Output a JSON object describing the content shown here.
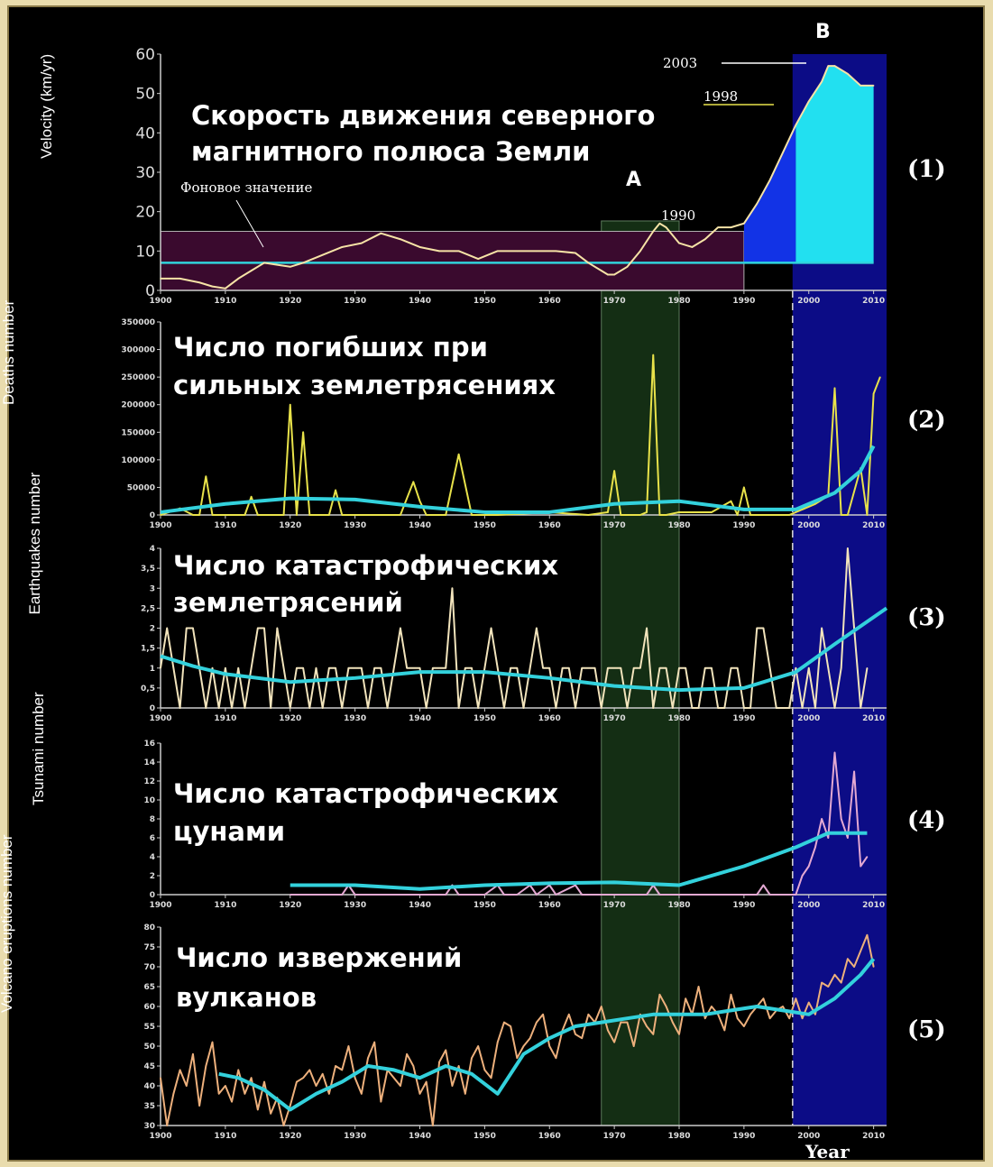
{
  "chart_data": [
    {
      "type": "line",
      "panel_number": "(1)",
      "title_lines": [
        "Скорость движения северного",
        "магнитного полюса Земли"
      ],
      "ylabel": "Velocity (km/yr)",
      "xlim": [
        1900,
        2012
      ],
      "ylim": [
        0,
        60
      ],
      "yticks": [
        "0",
        "10",
        "20",
        "30",
        "40",
        "50",
        "60"
      ],
      "xticks": [
        "1900",
        "1910",
        "1920",
        "1930",
        "1940",
        "1950",
        "1960",
        "1970",
        "1980",
        "1990",
        "2000",
        "2010"
      ],
      "background_label": "Фоновое значение",
      "background_value": 7,
      "background_band": [
        0,
        15
      ],
      "label_A": "A",
      "label_B": "B",
      "annotations": [
        "1990",
        "1998",
        "2003"
      ],
      "series": [
        {
          "color": "#f6e3a6",
          "x": [
            1900,
            1903,
            1906,
            1908,
            1910,
            1912,
            1914,
            1916,
            1918,
            1920,
            1922,
            1925,
            1928,
            1931,
            1934,
            1937,
            1940,
            1943,
            1946,
            1949,
            1952,
            1955,
            1958,
            1961,
            1964,
            1966,
            1968,
            1969,
            1970,
            1972,
            1974,
            1976,
            1977,
            1978,
            1980,
            1982,
            1984,
            1986,
            1988,
            1990,
            1992,
            1994,
            1996,
            1998,
            2000,
            2002,
            2003,
            2004,
            2006,
            2008,
            2010
          ],
          "y": [
            3,
            3,
            2,
            1,
            0.5,
            3,
            5,
            7,
            6.5,
            6,
            7,
            9,
            11,
            12,
            14.5,
            13,
            11,
            10,
            10,
            8,
            10,
            10,
            10,
            10,
            9.5,
            7,
            5,
            4,
            4,
            6,
            10,
            15,
            17,
            16,
            12,
            11,
            13,
            16,
            16,
            17,
            22,
            28,
            35,
            42,
            48,
            53,
            57,
            57,
            55,
            52,
            52
          ]
        }
      ]
    },
    {
      "type": "line",
      "panel_number": "(2)",
      "title_lines": [
        "Число погибших при",
        "сильных землетрясениях"
      ],
      "ylabel": "Deaths number",
      "xlim": [
        1900,
        2012
      ],
      "ylim": [
        0,
        350000
      ],
      "yticks": [
        "0",
        "50000",
        "100000",
        "150000",
        "200000",
        "250000",
        "300000",
        "350000"
      ],
      "xticks": [
        "1900",
        "1910",
        "1920",
        "1930",
        "1940",
        "1950",
        "1960",
        "1970",
        "1980",
        "1990",
        "2000",
        "2010"
      ],
      "series": [
        {
          "color": "#e8e24a",
          "x": [
            1900,
            1903,
            1905,
            1906,
            1907,
            1908,
            1909,
            1911,
            1913,
            1914,
            1915,
            1917,
            1919,
            1920,
            1921,
            1922,
            1923,
            1924,
            1926,
            1927,
            1928,
            1930,
            1935,
            1937,
            1939,
            1940,
            1941,
            1944,
            1946,
            1948,
            1949,
            1952,
            1960,
            1966,
            1969,
            1970,
            1971,
            1974,
            1975,
            1976,
            1977,
            1978,
            1980,
            1985,
            1988,
            1989,
            1990,
            1991,
            1993,
            1997,
            2001,
            2003,
            2004,
            2005,
            2006,
            2008,
            2009,
            2010,
            2011
          ],
          "y": [
            0,
            12000,
            0,
            0,
            70000,
            0,
            0,
            0,
            0,
            33000,
            0,
            0,
            0,
            200000,
            0,
            150000,
            0,
            0,
            0,
            45000,
            0,
            0,
            0,
            0,
            60000,
            25000,
            0,
            0,
            110000,
            0,
            0,
            0,
            5000,
            0,
            5000,
            80000,
            0,
            0,
            5000,
            290000,
            0,
            0,
            5000,
            5000,
            25000,
            0,
            50000,
            0,
            0,
            0,
            20000,
            35000,
            230000,
            0,
            0,
            85000,
            0,
            220000,
            250000
          ]
        },
        {
          "color": "#33d1dc",
          "x": [
            1900,
            1910,
            1920,
            1930,
            1940,
            1950,
            1960,
            1970,
            1980,
            1990,
            1998,
            2004,
            2008,
            2010
          ],
          "y": [
            5000,
            20000,
            30000,
            28000,
            15000,
            5000,
            5000,
            20000,
            25000,
            10000,
            10000,
            40000,
            80000,
            125000
          ]
        }
      ]
    },
    {
      "type": "line",
      "panel_number": "(3)",
      "title_lines": [
        "Число катастрофических",
        "землетрясений"
      ],
      "ylabel": "Earthquakes number",
      "xlim": [
        1900,
        2012
      ],
      "ylim": [
        0,
        4
      ],
      "yticks": [
        "0",
        "0,5",
        "1",
        "1,5",
        "2",
        "2,5",
        "3",
        "3,5",
        "4"
      ],
      "xticks": [
        "1900",
        "1910",
        "1920",
        "1930",
        "1940",
        "1950",
        "1960",
        "1970",
        "1980",
        "1990",
        "2000",
        "2010"
      ],
      "series": [
        {
          "color": "#f2e4bc",
          "x": [
            1900,
            1901,
            1902,
            1903,
            1904,
            1905,
            1906,
            1907,
            1908,
            1909,
            1910,
            1911,
            1912,
            1913,
            1914,
            1915,
            1916,
            1917,
            1918,
            1919,
            1920,
            1921,
            1922,
            1923,
            1924,
            1925,
            1926,
            1927,
            1928,
            1929,
            1930,
            1931,
            1932,
            1933,
            1934,
            1935,
            1936,
            1937,
            1938,
            1939,
            1940,
            1941,
            1942,
            1943,
            1944,
            1945,
            1946,
            1947,
            1948,
            1949,
            1950,
            1951,
            1952,
            1953,
            1954,
            1955,
            1956,
            1957,
            1958,
            1959,
            1960,
            1961,
            1962,
            1963,
            1964,
            1965,
            1966,
            1967,
            1968,
            1969,
            1970,
            1971,
            1972,
            1973,
            1974,
            1975,
            1976,
            1977,
            1978,
            1979,
            1980,
            1981,
            1982,
            1983,
            1984,
            1985,
            1986,
            1987,
            1988,
            1989,
            1990,
            1991,
            1992,
            1993,
            1994,
            1995,
            1996,
            1997,
            1998,
            1999,
            2000,
            2001,
            2002,
            2003,
            2004,
            2005,
            2006,
            2007,
            2008,
            2009
          ],
          "y": [
            1,
            2,
            1,
            0,
            2,
            2,
            1,
            0,
            1,
            0,
            1,
            0,
            1,
            0,
            1,
            2,
            2,
            0,
            2,
            1,
            0,
            1,
            1,
            0,
            1,
            0,
            1,
            1,
            0,
            1,
            1,
            1,
            0,
            1,
            1,
            0,
            1,
            2,
            1,
            1,
            1,
            0,
            1,
            1,
            1,
            3,
            0,
            1,
            1,
            0,
            1,
            2,
            1,
            0,
            1,
            1,
            0,
            1,
            2,
            1,
            1,
            0,
            1,
            1,
            0,
            1,
            1,
            1,
            0,
            1,
            1,
            1,
            0,
            1,
            1,
            2,
            0,
            1,
            1,
            0,
            1,
            1,
            0,
            0,
            1,
            1,
            0,
            0,
            1,
            1,
            0,
            0,
            2,
            2,
            1,
            0,
            0,
            0,
            1,
            0,
            1,
            0,
            2,
            1,
            0,
            1,
            4,
            2,
            0,
            1
          ]
        },
        {
          "color": "#33d1dc",
          "x": [
            1900,
            1905,
            1910,
            1920,
            1930,
            1940,
            1950,
            1960,
            1970,
            1980,
            1990,
            1998,
            2004,
            2012
          ],
          "y": [
            1.3,
            1.05,
            0.85,
            0.65,
            0.75,
            0.9,
            0.9,
            0.75,
            0.55,
            0.45,
            0.5,
            0.9,
            1.6,
            2.5
          ]
        }
      ]
    },
    {
      "type": "line",
      "panel_number": "(4)",
      "title_lines": [
        "Число катастрофических",
        "цунами"
      ],
      "ylabel": "Tsunami number",
      "xlim": [
        1900,
        2012
      ],
      "ylim": [
        0,
        16
      ],
      "yticks": [
        "0",
        "2",
        "4",
        "6",
        "8",
        "10",
        "12",
        "14",
        "16"
      ],
      "xticks": [
        "1900",
        "1910",
        "1920",
        "1930",
        "1940",
        "1950",
        "1960",
        "1970",
        "1980",
        "1990",
        "2000",
        "2010"
      ],
      "series": [
        {
          "color": "#e3a8d2",
          "x": [
            1920,
            1923,
            1925,
            1928,
            1929,
            1930,
            1931,
            1935,
            1944,
            1945,
            1946,
            1950,
            1952,
            1953,
            1955,
            1957,
            1958,
            1960,
            1961,
            1964,
            1965,
            1975,
            1976,
            1977,
            1979,
            1980,
            1992,
            1993,
            1994,
            1996,
            1998,
            1999,
            2000,
            2001,
            2002,
            2003,
            2004,
            2005,
            2006,
            2007,
            2008,
            2009
          ],
          "y": [
            0,
            0,
            0,
            0,
            1,
            0,
            0,
            0,
            0,
            1,
            0,
            0,
            1,
            0,
            0,
            1,
            0,
            1,
            0,
            1,
            0,
            0,
            1,
            0,
            0,
            0,
            0,
            1,
            0,
            0,
            0,
            2,
            3,
            5,
            8,
            6,
            15,
            8,
            6,
            13,
            3,
            4
          ]
        },
        {
          "color": "#33d1dc",
          "x": [
            1920,
            1930,
            1940,
            1950,
            1960,
            1970,
            1980,
            1990,
            1998,
            2003,
            2009
          ],
          "y": [
            1,
            1,
            0.6,
            1,
            1.2,
            1.3,
            1,
            3,
            5,
            6.5,
            6.5
          ]
        }
      ]
    },
    {
      "type": "line",
      "panel_number": "(5)",
      "title_lines": [
        "Число извержений",
        "вулканов"
      ],
      "ylabel": "Volcano eruptions number",
      "xlabel": "Year",
      "xlim": [
        1900,
        2012
      ],
      "ylim": [
        30,
        80
      ],
      "yticks": [
        "30",
        "35",
        "40",
        "45",
        "50",
        "55",
        "60",
        "65",
        "70",
        "75",
        "80"
      ],
      "xticks": [
        "1900",
        "1910",
        "1920",
        "1930",
        "1940",
        "1950",
        "1960",
        "1970",
        "1980",
        "1990",
        "2000",
        "2010"
      ],
      "series": [
        {
          "color": "#edb07c",
          "x": [
            1900,
            1901,
            1902,
            1903,
            1904,
            1905,
            1906,
            1907,
            1908,
            1909,
            1910,
            1911,
            1912,
            1913,
            1914,
            1915,
            1916,
            1917,
            1918,
            1919,
            1920,
            1921,
            1922,
            1923,
            1924,
            1925,
            1926,
            1927,
            1928,
            1929,
            1930,
            1931,
            1932,
            1933,
            1934,
            1935,
            1936,
            1937,
            1938,
            1939,
            1940,
            1941,
            1942,
            1943,
            1944,
            1945,
            1946,
            1947,
            1948,
            1949,
            1950,
            1951,
            1952,
            1953,
            1954,
            1955,
            1956,
            1957,
            1958,
            1959,
            1960,
            1961,
            1962,
            1963,
            1964,
            1965,
            1966,
            1967,
            1968,
            1969,
            1970,
            1971,
            1972,
            1973,
            1974,
            1975,
            1976,
            1977,
            1978,
            1979,
            1980,
            1981,
            1982,
            1983,
            1984,
            1985,
            1986,
            1987,
            1988,
            1989,
            1990,
            1991,
            1992,
            1993,
            1994,
            1995,
            1996,
            1997,
            1998,
            1999,
            2000,
            2001,
            2002,
            2003,
            2004,
            2005,
            2006,
            2007,
            2008,
            2009,
            2010
          ],
          "y": [
            42,
            30,
            38,
            44,
            40,
            48,
            35,
            45,
            51,
            38,
            40,
            36,
            44,
            38,
            42,
            34,
            41,
            33,
            37,
            30,
            35,
            41,
            42,
            44,
            40,
            43,
            38,
            45,
            44,
            50,
            42,
            38,
            47,
            51,
            36,
            44,
            42,
            40,
            48,
            45,
            38,
            41,
            30,
            46,
            49,
            40,
            45,
            38,
            47,
            50,
            44,
            42,
            51,
            56,
            55,
            47,
            50,
            52,
            56,
            58,
            50,
            47,
            54,
            58,
            53,
            52,
            58,
            56,
            60,
            54,
            51,
            56,
            56,
            50,
            58,
            55,
            53,
            63,
            60,
            56,
            53,
            62,
            58,
            65,
            57,
            60,
            58,
            54,
            63,
            57,
            55,
            58,
            60,
            62,
            57,
            59,
            60,
            57,
            62,
            57,
            61,
            58,
            66,
            65,
            68,
            66,
            72,
            70,
            74,
            78,
            70
          ]
        },
        {
          "color": "#33d1dc",
          "x": [
            1909,
            1912,
            1916,
            1920,
            1924,
            1928,
            1932,
            1936,
            1940,
            1944,
            1948,
            1952,
            1956,
            1960,
            1964,
            1968,
            1972,
            1976,
            1980,
            1984,
            1988,
            1992,
            1996,
            2000,
            2004,
            2008,
            2010
          ],
          "y": [
            43,
            42,
            39,
            34,
            38,
            41,
            45,
            44,
            42,
            45,
            43,
            38,
            48,
            52,
            55,
            56,
            57,
            58,
            58,
            58,
            59,
            60,
            59,
            58,
            62,
            68,
            72
          ]
        }
      ]
    }
  ],
  "xlabel_year": "Year"
}
